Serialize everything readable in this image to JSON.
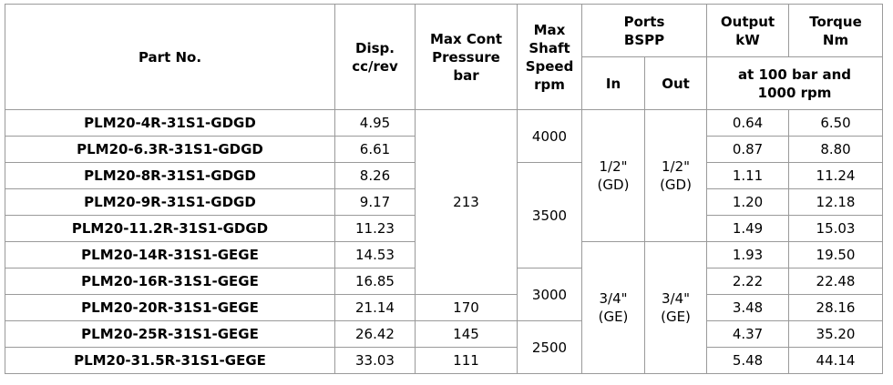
{
  "header": {
    "part_no": "Part No.",
    "disp": [
      "Disp.",
      "cc/rev"
    ],
    "pressure": [
      "Max Cont",
      "Pressure",
      "bar"
    ],
    "speed": [
      "Max",
      "Shaft",
      "Speed",
      "rpm"
    ],
    "ports": [
      "Ports",
      "BSPP"
    ],
    "output": [
      "Output",
      "kW"
    ],
    "torque": [
      "Torque",
      "Nm"
    ],
    "port_in": "In",
    "port_out": "Out",
    "conditions": [
      "at 100 bar and",
      "1000 rpm"
    ]
  },
  "table": {
    "rows": [
      [
        "PLM20-4R-31S1-GDGD",
        "4.95",
        "213",
        "4000",
        [
          "1/2\"",
          "(GD)"
        ],
        [
          "1/2\"",
          "(GD)"
        ],
        "0.64",
        "6.50"
      ],
      [
        "PLM20-6.3R-31S1-GDGD",
        "6.61",
        null,
        null,
        null,
        null,
        "0.87",
        "8.80"
      ],
      [
        "PLM20-8R-31S1-GDGD",
        "8.26",
        null,
        "3500",
        null,
        null,
        "1.11",
        "11.24"
      ],
      [
        "PLM20-9R-31S1-GDGD",
        "9.17",
        null,
        null,
        null,
        null,
        "1.20",
        "12.18"
      ],
      [
        "PLM20-11.2R-31S1-GDGD",
        "11.23",
        null,
        null,
        null,
        null,
        "1.49",
        "15.03"
      ],
      [
        "PLM20-14R-31S1-GEGE",
        "14.53",
        null,
        null,
        [
          "3/4\"",
          "(GE)"
        ],
        [
          "3/4\"",
          "(GE)"
        ],
        "1.93",
        "19.50"
      ],
      [
        "PLM20-16R-31S1-GEGE",
        "16.85",
        null,
        "3000",
        null,
        null,
        "2.22",
        "22.48"
      ],
      [
        "PLM20-20R-31S1-GEGE",
        "21.14",
        "170",
        null,
        null,
        null,
        "3.48",
        "28.16"
      ],
      [
        "PLM20-25R-31S1-GEGE",
        "26.42",
        "145",
        "2500",
        null,
        null,
        "4.37",
        "35.20"
      ],
      [
        "PLM20-31.5R-31S1-GEGE",
        "33.03",
        "111",
        null,
        null,
        null,
        "5.48",
        "44.14"
      ]
    ]
  }
}
